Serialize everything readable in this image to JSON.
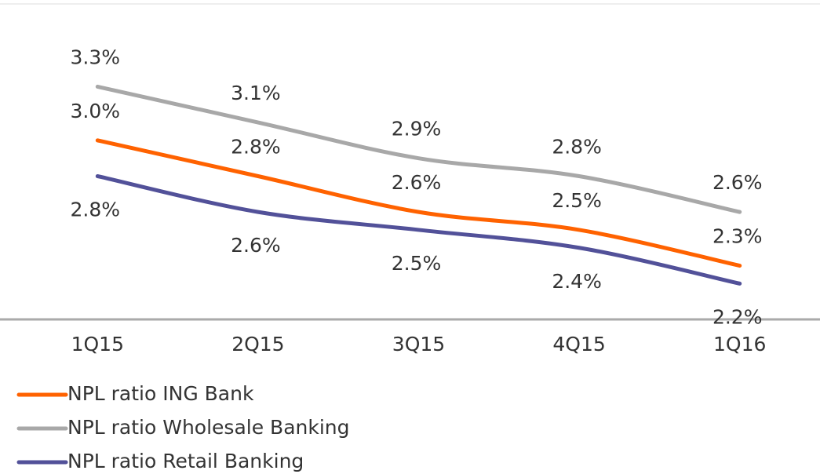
{
  "chart_data": {
    "type": "line",
    "categories": [
      "1Q15",
      "2Q15",
      "3Q15",
      "4Q15",
      "1Q16"
    ],
    "series": [
      {
        "name": "NPL ratio ING Bank",
        "color": "#ff6200",
        "values": [
          3.0,
          2.8,
          2.6,
          2.5,
          2.3
        ],
        "value_labels": [
          "3.0%",
          "2.8%",
          "2.6%",
          "2.5%",
          "2.3%"
        ]
      },
      {
        "name": "NPL ratio Wholesale Banking",
        "color": "#a8a8a8",
        "values": [
          3.3,
          3.1,
          2.9,
          2.8,
          2.6
        ],
        "value_labels": [
          "3.3%",
          "3.1%",
          "2.9%",
          "2.8%",
          "2.6%"
        ]
      },
      {
        "name": "NPL ratio Retail Banking",
        "color": "#525199",
        "values": [
          2.8,
          2.6,
          2.5,
          2.4,
          2.2
        ],
        "value_labels": [
          "2.8%",
          "2.6%",
          "2.5%",
          "2.4%",
          "2.2%"
        ]
      }
    ],
    "ylim": [
      2.0,
      3.6
    ],
    "legend": "bottom-left"
  }
}
